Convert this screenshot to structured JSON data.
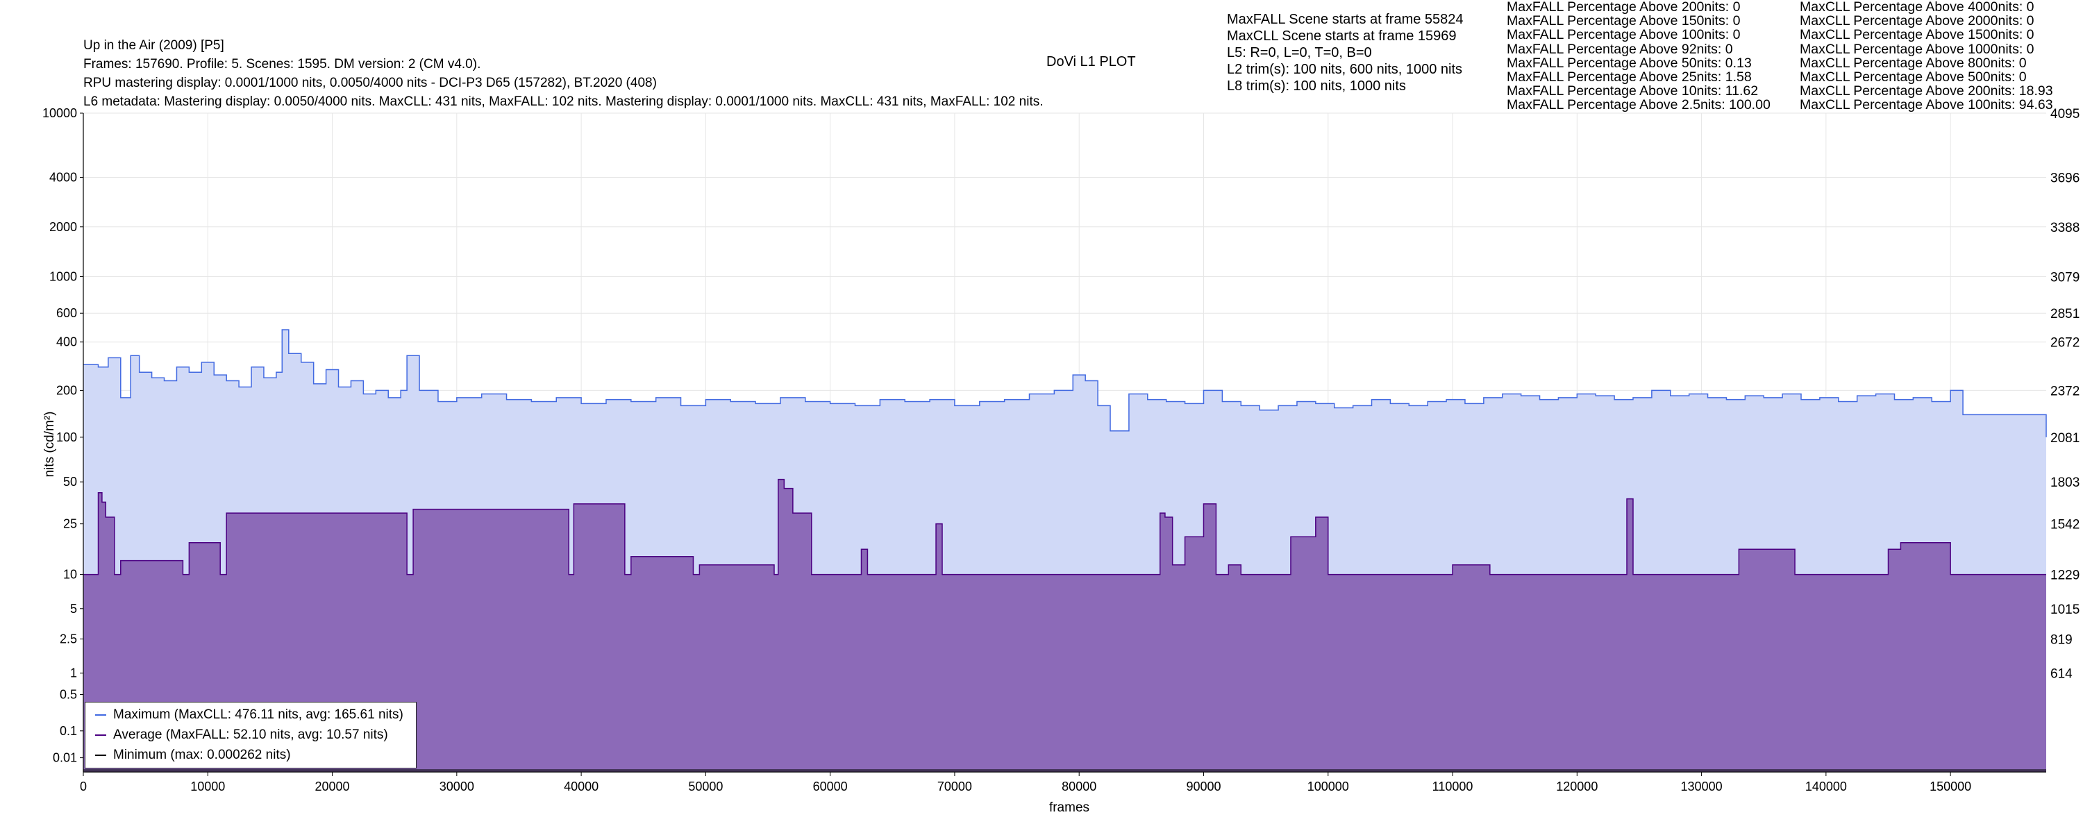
{
  "header": {
    "title": "Up in the Air (2009) [P5]",
    "frames_line": "Frames: 157690. Profile: 5. Scenes: 1595. DM version: 2 (CM v4.0).",
    "rpu_line": "RPU mastering display: 0.0001/1000 nits, 0.0050/4000 nits - DCI-P3 D65 (157282), BT.2020 (408)",
    "l6_line": "L6 metadata: Mastering display: 0.0050/4000 nits. MaxCLL: 431 nits, MaxFALL: 102 nits. Mastering display: 0.0001/1000 nits. MaxCLL: 431 nits, MaxFALL: 102 nits.",
    "plot_name": "DoVi L1 PLOT"
  },
  "scene_info": [
    "MaxFALL Scene starts at frame 55824",
    "MaxCLL Scene starts at frame 15969",
    "L5: R=0, L=0, T=0, B=0",
    "L2 trim(s): 100 nits, 600 nits, 1000 nits",
    "L8 trim(s): 100 nits, 1000 nits"
  ],
  "maxfall_percentages": [
    "MaxFALL Percentage Above 200nits: 0",
    "MaxFALL Percentage Above 150nits: 0",
    "MaxFALL Percentage Above 100nits: 0",
    "MaxFALL Percentage Above   92nits: 0",
    "MaxFALL Percentage Above   50nits: 0.13",
    "MaxFALL Percentage Above   25nits: 1.58",
    "MaxFALL Percentage Above   10nits: 11.62",
    "MaxFALL Percentage Above  2.5nits: 100.00"
  ],
  "maxcll_percentages": [
    "MaxCLL Percentage Above 4000nits: 0",
    "MaxCLL Percentage Above 2000nits: 0",
    "MaxCLL Percentage Above 1500nits: 0",
    "MaxCLL Percentage Above 1000nits: 0",
    "MaxCLL Percentage Above   800nits: 0",
    "MaxCLL Percentage Above   500nits: 0",
    "MaxCLL Percentage Above   200nits: 18.93",
    "MaxCLL Percentage Above   100nits: 94.63"
  ],
  "legend": {
    "max_label": "Maximum (MaxCLL: 476.11 nits, avg: 165.61 nits)",
    "avg_label": "Average (MaxFALL: 52.10 nits, avg: 10.57 nits)",
    "min_label": "Minimum (max: 0.000262 nits)"
  },
  "colors": {
    "max_line": "#4169e1",
    "max_fill": "#d0d9f7",
    "avg_line": "#4b0082",
    "avg_fill": "#8c6ab8",
    "min_line": "#000000",
    "grid": "#e6e6e6"
  },
  "chart_data": {
    "type": "area",
    "title": "DoVi L1 PLOT",
    "xlabel": "frames",
    "ylabel": "nits (cd/m²)",
    "xlim": [
      0,
      157690
    ],
    "x_ticks": [
      0,
      10000,
      20000,
      30000,
      40000,
      50000,
      60000,
      70000,
      80000,
      90000,
      100000,
      110000,
      120000,
      130000,
      140000,
      150000
    ],
    "x_tick_labels": [
      "0",
      "10000",
      "20000",
      "30000",
      "40000",
      "50000",
      "60000",
      "70000",
      "80000",
      "90000",
      "100000",
      "110000",
      "120000",
      "130000",
      "140000",
      "150000"
    ],
    "y_scale": "pq",
    "ylim": [
      0,
      10000
    ],
    "y_ticks": [
      0.01,
      0.1,
      0.5,
      1,
      2.5,
      5,
      10,
      25,
      50,
      100,
      200,
      400,
      600,
      1000,
      2000,
      4000,
      10000
    ],
    "y_tick_labels": [
      "0.01",
      "0.1",
      "0.5",
      "1",
      "2.5",
      "5",
      "10",
      "25",
      "50",
      "100",
      "200",
      "400",
      "600",
      "1000",
      "2000",
      "4000",
      "10000"
    ],
    "right_axis_ticks": [
      {
        "nits": 10000,
        "label": "4095"
      },
      {
        "nits": 4000,
        "label": "3696"
      },
      {
        "nits": 2000,
        "label": "3388"
      },
      {
        "nits": 1000,
        "label": "3079"
      },
      {
        "nits": 600,
        "label": "2851"
      },
      {
        "nits": 400,
        "label": "2672"
      },
      {
        "nits": 200,
        "label": "2372"
      },
      {
        "nits": 100,
        "label": "2081"
      },
      {
        "nits": 50,
        "label": "1803"
      },
      {
        "nits": 25,
        "label": "1542"
      },
      {
        "nits": 10,
        "label": "1229"
      },
      {
        "nits": 5,
        "label": "1015"
      },
      {
        "nits": 2.5,
        "label": "819"
      },
      {
        "nits": 1,
        "label": "614"
      }
    ],
    "grid": true,
    "legend_position": "bottom-left",
    "series": [
      {
        "name": "Maximum (MaxCLL: 476.11 nits, avg: 165.61 nits)",
        "x": [
          0,
          1200,
          2000,
          3000,
          3800,
          4500,
          5500,
          6500,
          7500,
          8500,
          9500,
          10500,
          11500,
          12500,
          13500,
          14500,
          15500,
          15969,
          16500,
          17500,
          18500,
          19500,
          20500,
          21500,
          22500,
          23500,
          24500,
          25500,
          26000,
          27000,
          28500,
          30000,
          32000,
          34000,
          36000,
          38000,
          40000,
          42000,
          44000,
          46000,
          48000,
          50000,
          52000,
          54000,
          56000,
          58000,
          60000,
          62000,
          64000,
          66000,
          68000,
          70000,
          72000,
          74000,
          76000,
          78000,
          79500,
          80500,
          81500,
          82500,
          84000,
          85500,
          87000,
          88500,
          90000,
          91500,
          93000,
          94500,
          96000,
          97500,
          99000,
          100500,
          102000,
          103500,
          105000,
          106500,
          108000,
          109500,
          111000,
          112500,
          114000,
          115500,
          117000,
          118500,
          120000,
          121500,
          123000,
          124500,
          126000,
          127500,
          129000,
          130500,
          132000,
          133500,
          135000,
          136500,
          138000,
          139500,
          141000,
          142500,
          144000,
          145500,
          147000,
          148500,
          150000,
          151000,
          153000,
          155000,
          157000,
          157690
        ],
        "y": [
          290,
          280,
          320,
          180,
          330,
          260,
          240,
          230,
          280,
          260,
          300,
          250,
          230,
          210,
          280,
          240,
          260,
          476,
          340,
          300,
          220,
          270,
          210,
          230,
          190,
          200,
          180,
          200,
          330,
          200,
          170,
          180,
          190,
          175,
          170,
          180,
          165,
          175,
          170,
          180,
          160,
          175,
          170,
          165,
          180,
          170,
          165,
          160,
          175,
          170,
          175,
          160,
          170,
          175,
          190,
          200,
          250,
          230,
          160,
          110,
          190,
          175,
          170,
          165,
          200,
          170,
          160,
          150,
          160,
          170,
          165,
          155,
          160,
          175,
          165,
          160,
          170,
          175,
          165,
          180,
          190,
          185,
          175,
          180,
          190,
          185,
          175,
          180,
          200,
          185,
          190,
          180,
          175,
          185,
          180,
          190,
          175,
          180,
          170,
          185,
          190,
          175,
          180,
          170,
          200,
          140,
          140,
          140,
          140,
          100
        ]
      },
      {
        "name": "Average (MaxFALL: 52.10 nits, avg: 10.57 nits)",
        "x": [
          0,
          1000,
          1200,
          1500,
          1800,
          2500,
          3000,
          8000,
          8500,
          11000,
          11500,
          26000,
          26500,
          39000,
          39400,
          43500,
          44000,
          49000,
          49500,
          55500,
          55824,
          56300,
          57000,
          58500,
          62500,
          63000,
          68500,
          69000,
          86500,
          86900,
          87500,
          88500,
          90000,
          91000,
          92000,
          93000,
          97000,
          99000,
          100000,
          110000,
          113000,
          124000,
          124500,
          133000,
          137500,
          145000,
          146000,
          150000,
          157690
        ],
        "y": [
          10,
          10,
          42,
          36,
          28,
          10,
          13,
          10,
          18,
          10,
          30,
          10,
          32,
          10,
          35,
          10,
          14,
          10,
          12,
          10,
          52,
          45,
          30,
          10,
          16,
          10,
          25,
          10,
          30,
          28,
          12,
          20,
          35,
          10,
          12,
          10,
          20,
          28,
          10,
          12,
          10,
          38,
          10,
          16,
          10,
          16,
          18,
          10,
          10
        ]
      },
      {
        "name": "Minimum (max: 0.000262 nits)",
        "x": [
          0,
          157690
        ],
        "y": [
          0.000262,
          0.000262
        ]
      }
    ]
  }
}
